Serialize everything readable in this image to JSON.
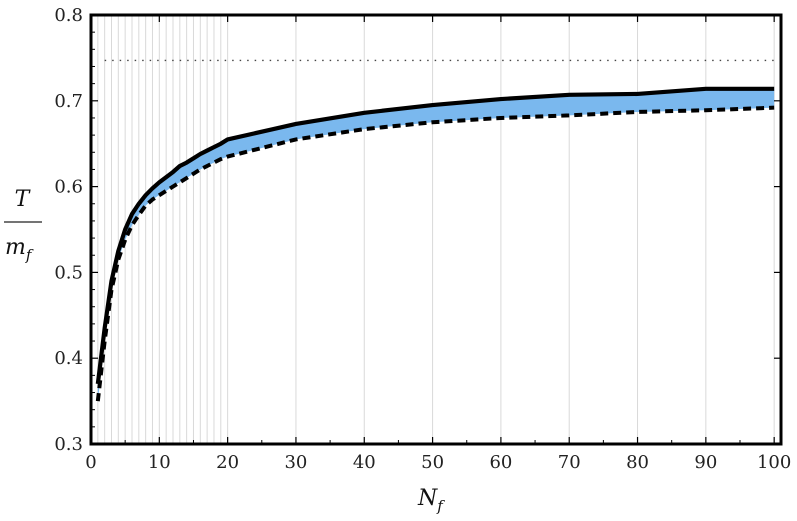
{
  "chart_data": {
    "type": "line",
    "title": "",
    "xlabel": "N",
    "xlabel_sub": "f",
    "ylabel_num": "T",
    "ylabel_den": "m",
    "ylabel_den_sub": "f",
    "xlim": [
      0,
      101
    ],
    "ylim": [
      0.3,
      0.8
    ],
    "xticks": [
      0,
      10,
      20,
      30,
      40,
      50,
      60,
      70,
      80,
      90,
      100
    ],
    "yticks": [
      0.3,
      0.4,
      0.5,
      0.6,
      0.7,
      0.8
    ],
    "xtick_labels": [
      "0",
      "10",
      "20",
      "30",
      "40",
      "50",
      "60",
      "70",
      "80",
      "90",
      "100"
    ],
    "ytick_labels": [
      "0.3",
      "0.4",
      "0.5",
      "0.6",
      "0.7",
      "0.8"
    ],
    "grid": "vertical lines at each data x",
    "legend": "none",
    "fill_color": "#7ab8ee",
    "series": [
      {
        "style": "solid",
        "x": [
          1,
          2,
          3,
          4,
          5,
          6,
          7,
          8,
          9,
          10,
          11,
          12,
          13,
          14,
          15,
          16,
          17,
          18,
          19,
          20,
          30,
          40,
          50,
          60,
          70,
          80,
          90,
          100
        ],
        "y": [
          0.37,
          0.435,
          0.49,
          0.525,
          0.55,
          0.568,
          0.58,
          0.59,
          0.598,
          0.605,
          0.611,
          0.617,
          0.624,
          0.628,
          0.633,
          0.638,
          0.642,
          0.646,
          0.65,
          0.655,
          0.673,
          0.686,
          0.695,
          0.702,
          0.707,
          0.708,
          0.714,
          0.714
        ]
      },
      {
        "style": "dashed",
        "x": [
          1,
          2,
          3,
          4,
          5,
          6,
          7,
          8,
          9,
          10,
          11,
          12,
          13,
          14,
          15,
          16,
          17,
          18,
          19,
          20,
          30,
          40,
          50,
          60,
          70,
          80,
          90,
          100
        ],
        "y": [
          0.35,
          0.42,
          0.48,
          0.515,
          0.538,
          0.555,
          0.567,
          0.578,
          0.585,
          0.59,
          0.595,
          0.6,
          0.605,
          0.61,
          0.615,
          0.62,
          0.624,
          0.628,
          0.632,
          0.635,
          0.655,
          0.667,
          0.675,
          0.68,
          0.683,
          0.687,
          0.689,
          0.692
        ]
      }
    ],
    "reference_line": {
      "style": "dotted",
      "y": 0.747,
      "x_range": [
        2,
        100
      ]
    }
  }
}
